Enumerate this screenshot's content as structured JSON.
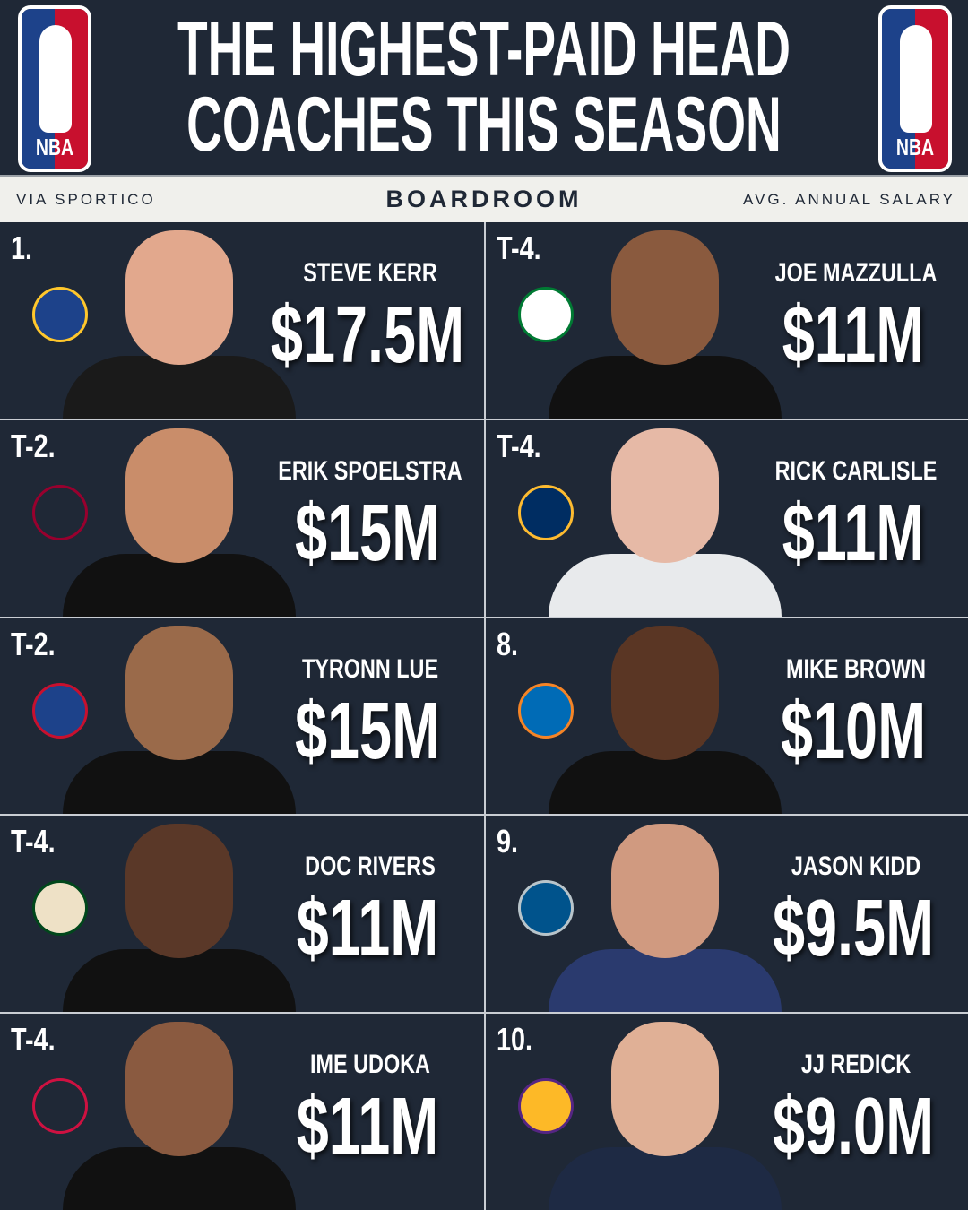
{
  "header": {
    "title_line1": "THE HIGHEST-PAID HEAD",
    "title_line2": "COACHES THIS SEASON",
    "logo_text": "NBA"
  },
  "strip": {
    "source": "VIA SPORTICO",
    "brand": "BOARDROOM",
    "metric": "AVG. ANNUAL SALARY"
  },
  "colors": {
    "background": "#1f2836",
    "strip": "#f0f0ec",
    "nba_blue": "#1d428a",
    "nba_red": "#c8102e"
  },
  "coaches": [
    {
      "rank": "1.",
      "name": "STEVE KERR",
      "salary": "$17.5M",
      "team_logo": "warriors-logo",
      "logo_color": "#1d428a",
      "logo_accent": "#ffc72c",
      "skin": "#e2a88d",
      "shirt": "#1a1a1a"
    },
    {
      "rank": "T-4.",
      "name": "JOE MAZZULLA",
      "salary": "$11M",
      "team_logo": "celtics-logo",
      "logo_color": "#ffffff",
      "logo_accent": "#007a33",
      "skin": "#8a5a3e",
      "shirt": "#111"
    },
    {
      "rank": "T-2.",
      "name": "ERIK SPOELSTRA",
      "salary": "$15M",
      "team_logo": "heat-logo",
      "logo_color": "#1f2836",
      "logo_accent": "#98002e",
      "skin": "#c98d6a",
      "shirt": "#111"
    },
    {
      "rank": "T-4.",
      "name": "RICK CARLISLE",
      "salary": "$11M",
      "team_logo": "pacers-logo",
      "logo_color": "#002d62",
      "logo_accent": "#fdbb30",
      "skin": "#e6b9a6",
      "shirt": "#e8eaec"
    },
    {
      "rank": "T-2.",
      "name": "TYRONN LUE",
      "salary": "$15M",
      "team_logo": "clippers-logo",
      "logo_color": "#1d428a",
      "logo_accent": "#c8102e",
      "skin": "#9a6a4a",
      "shirt": "#111"
    },
    {
      "rank": "8.",
      "name": "MIKE BROWN",
      "salary": "$10M",
      "team_logo": "knicks-logo",
      "logo_color": "#006bb6",
      "logo_accent": "#f58426",
      "skin": "#5a3624",
      "shirt": "#111"
    },
    {
      "rank": "T-4.",
      "name": "DOC RIVERS",
      "salary": "$11M",
      "team_logo": "bucks-logo",
      "logo_color": "#eee1c6",
      "logo_accent": "#00471b",
      "skin": "#5a3828",
      "shirt": "#111"
    },
    {
      "rank": "9.",
      "name": "JASON KIDD",
      "salary": "$9.5M",
      "team_logo": "mavericks-logo",
      "logo_color": "#00538c",
      "logo_accent": "#b8c4ca",
      "skin": "#d09a80",
      "shirt": "#2a3a6e"
    },
    {
      "rank": "T-4.",
      "name": "IME UDOKA",
      "salary": "$11M",
      "team_logo": "rockets-logo",
      "logo_color": "#1f2836",
      "logo_accent": "#ce1141",
      "skin": "#8a5a40",
      "shirt": "#111"
    },
    {
      "rank": "10.",
      "name": "JJ REDICK",
      "salary": "$9.0M",
      "team_logo": "lakers-logo",
      "logo_color": "#fdb927",
      "logo_accent": "#552583",
      "skin": "#e0b096",
      "shirt": "#1e2a44"
    }
  ]
}
